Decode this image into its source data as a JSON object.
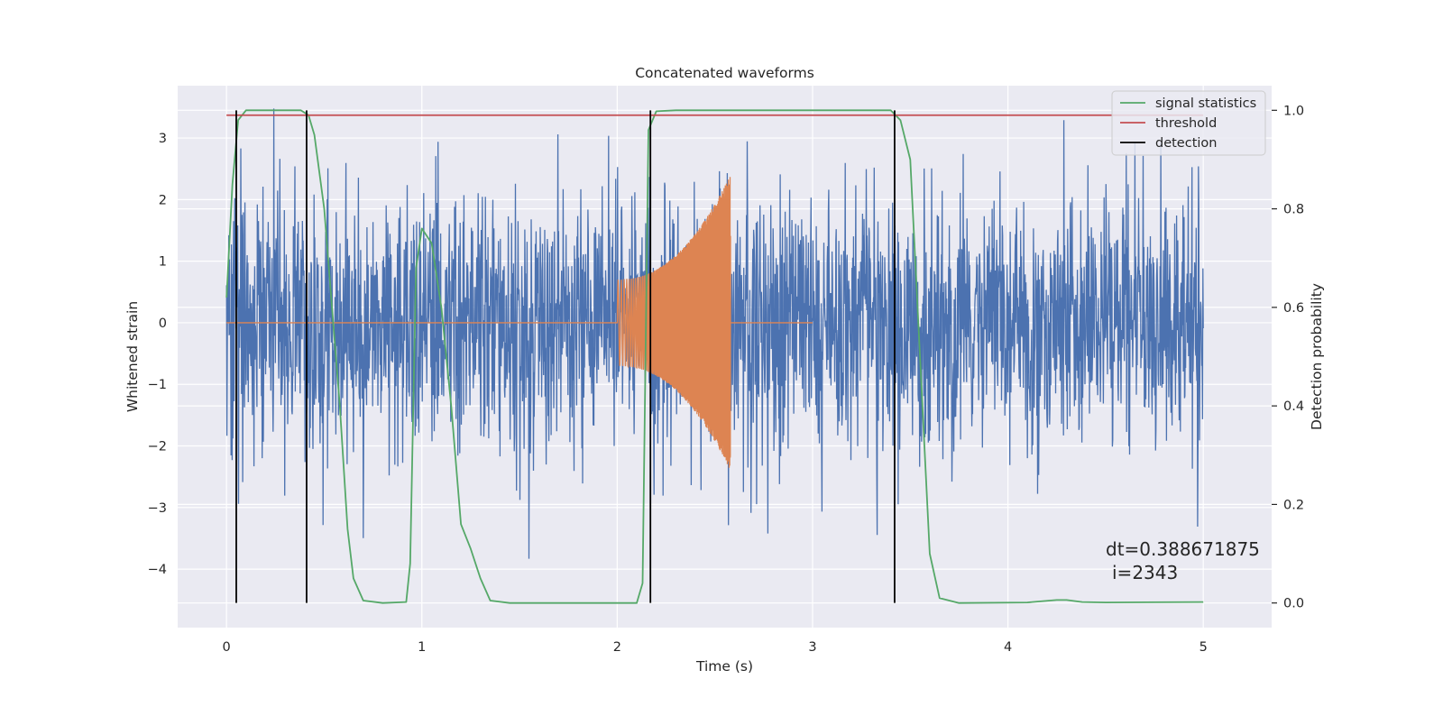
{
  "chart_data": {
    "type": "line",
    "title": "Concatenated waveforms",
    "xlabel": "Time (s)",
    "ylabel": "Whitened strain",
    "ylabel_right": "Detection probability",
    "xlim": [
      -0.25,
      5.35
    ],
    "ylim": [
      -4.95,
      3.85
    ],
    "ylim_right": [
      -0.05,
      1.05
    ],
    "x_ticks": [
      0,
      1,
      2,
      3,
      4,
      5
    ],
    "y_ticks": [
      -4,
      -3,
      -2,
      -1,
      0,
      1,
      2,
      3
    ],
    "y_ticks_right": [
      0.0,
      0.2,
      0.4,
      0.6,
      0.8,
      1.0
    ],
    "x_tick_labels": [
      "0",
      "1",
      "2",
      "3",
      "4",
      "5"
    ],
    "y_tick_labels": [
      "−4",
      "−3",
      "−2",
      "−1",
      "0",
      "1",
      "2",
      "3"
    ],
    "y_tick_labels_right": [
      "0.0",
      "0.2",
      "0.4",
      "0.6",
      "0.8",
      "1.0"
    ],
    "grid": true,
    "legend_position": "top-right",
    "legend": [
      {
        "label": "signal statistics",
        "color": "#55a868"
      },
      {
        "label": "threshold",
        "color": "#c44e52"
      },
      {
        "label": "detection",
        "color": "#000000"
      }
    ],
    "colors": {
      "strain": "#4c72b0",
      "injection": "#dd8452",
      "signal_statistics": "#55a868",
      "threshold": "#c44e52",
      "detection": "#000000",
      "axes_background": "#eaeaf2",
      "grid": "#ffffff"
    },
    "series": [
      {
        "axis": "left",
        "note": "whitened noise strain, ~5000 samples over 0-5 s, roughly |y|<2.5 with spikes to about +3.5 and -4.6",
        "x_range": [
          0,
          5
        ],
        "envelope_typical": [
          -2.2,
          2.2
        ],
        "max": 3.5,
        "min": -4.6
      },
      {
        "axis": "left",
        "note": "injected chirp, zero except 2.0-2.58 s; amplitude grows from ~0.7 to ~2.4",
        "x_range": [
          0,
          3.0
        ],
        "chirp_start": 2.0,
        "chirp_end": 2.58,
        "amp_start": 0.7,
        "amp_end": 2.4
      },
      {
        "name": "signal statistics",
        "axis": "right",
        "points": [
          [
            0.0,
            0.62
          ],
          [
            0.03,
            0.85
          ],
          [
            0.06,
            0.98
          ],
          [
            0.1,
            1.0
          ],
          [
            0.38,
            1.0
          ],
          [
            0.42,
            0.99
          ],
          [
            0.45,
            0.95
          ],
          [
            0.5,
            0.8
          ],
          [
            0.54,
            0.6
          ],
          [
            0.58,
            0.4
          ],
          [
            0.62,
            0.15
          ],
          [
            0.65,
            0.05
          ],
          [
            0.7,
            0.005
          ],
          [
            0.8,
            0.0
          ],
          [
            0.92,
            0.002
          ],
          [
            0.94,
            0.08
          ],
          [
            0.97,
            0.68
          ],
          [
            1.0,
            0.76
          ],
          [
            1.05,
            0.73
          ],
          [
            1.1,
            0.6
          ],
          [
            1.15,
            0.4
          ],
          [
            1.2,
            0.16
          ],
          [
            1.25,
            0.11
          ],
          [
            1.3,
            0.05
          ],
          [
            1.35,
            0.005
          ],
          [
            1.45,
            0.0
          ],
          [
            2.1,
            0.0
          ],
          [
            2.13,
            0.04
          ],
          [
            2.16,
            0.96
          ],
          [
            2.2,
            0.998
          ],
          [
            2.3,
            1.0
          ],
          [
            3.4,
            1.0
          ],
          [
            3.45,
            0.98
          ],
          [
            3.5,
            0.9
          ],
          [
            3.55,
            0.5
          ],
          [
            3.6,
            0.1
          ],
          [
            3.65,
            0.01
          ],
          [
            3.75,
            0.0
          ],
          [
            4.1,
            0.001
          ],
          [
            4.25,
            0.006
          ],
          [
            4.3,
            0.006
          ],
          [
            4.38,
            0.002
          ],
          [
            4.5,
            0.001
          ],
          [
            5.0,
            0.002
          ]
        ]
      },
      {
        "name": "threshold",
        "axis": "right",
        "value": 0.99,
        "x_range": [
          0,
          5
        ]
      },
      {
        "name": "detection",
        "axis": "right",
        "x": [
          0.05,
          0.41,
          2.17,
          3.42
        ],
        "range": [
          0.0,
          1.0
        ]
      }
    ],
    "annotations": [
      "dt=0.388671875",
      "i=2343"
    ]
  }
}
